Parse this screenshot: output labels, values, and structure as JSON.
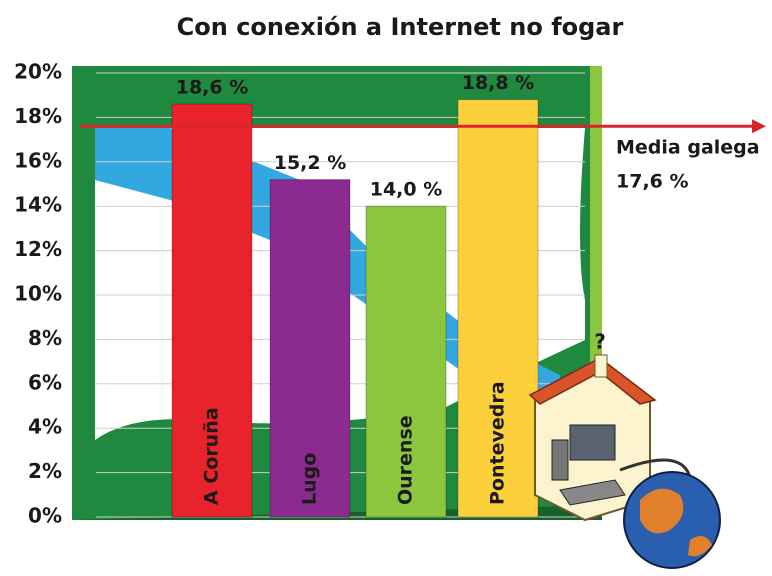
{
  "chart_data": {
    "type": "bar",
    "title": "Con conexión a Internet no fogar",
    "categories": [
      "A Coruña",
      "Lugo",
      "Ourense",
      "Pontevedra"
    ],
    "values": [
      18.6,
      15.2,
      14.0,
      18.8
    ],
    "value_labels": [
      "18,6 %",
      "15,2 %",
      "14,0 %",
      "18,8 %"
    ],
    "colors": [
      "#e8232c",
      "#8b2b8f",
      "#8cc63f",
      "#fcd03a"
    ],
    "ylim": [
      0,
      20
    ],
    "yticks": [
      {
        "value": 0,
        "label": "0%"
      },
      {
        "value": 2,
        "label": "2%"
      },
      {
        "value": 4,
        "label": "4%"
      },
      {
        "value": 6,
        "label": "6%"
      },
      {
        "value": 8,
        "label": "8%"
      },
      {
        "value": 10,
        "label": "10%"
      },
      {
        "value": 12,
        "label": "12%"
      },
      {
        "value": 14,
        "label": "14%"
      },
      {
        "value": 16,
        "label": "16%"
      },
      {
        "value": 18,
        "label": "18%"
      },
      {
        "value": 20,
        "label": "20%"
      }
    ],
    "grid": true,
    "reference_line": {
      "label": "Media galega",
      "value": 17.6,
      "value_label": "17,6 %",
      "color": "#d9262c"
    }
  }
}
